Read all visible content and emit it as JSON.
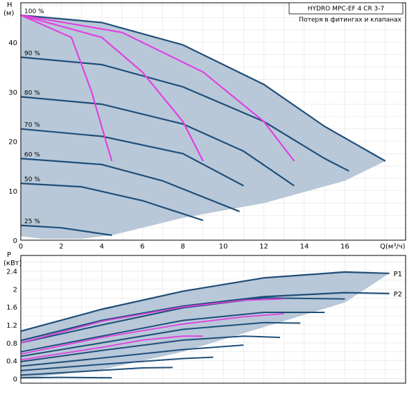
{
  "title": {
    "model": "HYDRO MPC-EF 4 CR 3-7",
    "subtitle": "Потеря в фитингах и клапанах"
  },
  "colors": {
    "envelope_fill": "#b8c8d8",
    "curve": "#1f4e79",
    "loss_curve": "#e040e0",
    "grid": "#e2e2e2",
    "frame": "#000000"
  },
  "chart_data": [
    {
      "type": "line",
      "ylabel": "H",
      "yunit": "(м)",
      "xlabel": "Q(м³/ч)",
      "xlim": [
        0,
        19
      ],
      "ylim": [
        0,
        48
      ],
      "x_ticks": [
        "0",
        "2",
        "4",
        "6",
        "8",
        "10",
        "12",
        "14",
        "16"
      ],
      "y_ticks": [
        "0",
        "10",
        "20",
        "30",
        "40"
      ],
      "grid": true,
      "curves": [
        {
          "label": "100 %",
          "points": [
            [
              0,
              45.5
            ],
            [
              4,
              44
            ],
            [
              8,
              39.5
            ],
            [
              12,
              31.5
            ],
            [
              15,
              23
            ],
            [
              18,
              16
            ]
          ]
        },
        {
          "label": "90 %",
          "points": [
            [
              0,
              37
            ],
            [
              4,
              35.5
            ],
            [
              8,
              31
            ],
            [
              12,
              24
            ],
            [
              15,
              16.5
            ],
            [
              16.2,
              14
            ]
          ]
        },
        {
          "label": "80 %",
          "points": [
            [
              0,
              29
            ],
            [
              4,
              27.5
            ],
            [
              8,
              23.5
            ],
            [
              11,
              18
            ],
            [
              13.5,
              11
            ]
          ]
        },
        {
          "label": "70 %",
          "points": [
            [
              0,
              22.5
            ],
            [
              4,
              21
            ],
            [
              8,
              17.5
            ],
            [
              11,
              11
            ]
          ]
        },
        {
          "label": "60 %",
          "points": [
            [
              0,
              16.5
            ],
            [
              4,
              15.3
            ],
            [
              7,
              12
            ],
            [
              10.8,
              5.8
            ]
          ]
        },
        {
          "label": "50 %",
          "points": [
            [
              0,
              11.5
            ],
            [
              3,
              10.8
            ],
            [
              6,
              8
            ],
            [
              9,
              4
            ]
          ]
        },
        {
          "label": "25 %",
          "points": [
            [
              0,
              3
            ],
            [
              2,
              2.5
            ],
            [
              4.5,
              1
            ]
          ]
        }
      ],
      "envelope": [
        [
          0,
          45.5
        ],
        [
          4,
          44
        ],
        [
          8,
          39.5
        ],
        [
          12,
          31.5
        ],
        [
          15,
          23
        ],
        [
          18,
          16
        ],
        [
          16,
          12
        ],
        [
          12,
          7.5
        ],
        [
          8,
          4.5
        ],
        [
          4.5,
          1
        ],
        [
          3,
          0.3
        ],
        [
          1,
          0.3
        ],
        [
          0,
          0.8
        ]
      ],
      "loss_curves": [
        [
          [
            0,
            45.5
          ],
          [
            2.5,
            41
          ],
          [
            3.5,
            30
          ],
          [
            4.2,
            20
          ],
          [
            4.5,
            16
          ]
        ],
        [
          [
            0,
            45.5
          ],
          [
            4,
            41
          ],
          [
            6,
            34
          ],
          [
            8,
            24
          ],
          [
            9,
            16
          ]
        ],
        [
          [
            0,
            45.5
          ],
          [
            5,
            42
          ],
          [
            9,
            34
          ],
          [
            12,
            24
          ],
          [
            13.5,
            16
          ]
        ]
      ]
    },
    {
      "type": "line",
      "ylabel": "P",
      "yunit": "(кВт)",
      "xlim": [
        0,
        19
      ],
      "ylim": [
        -0.1,
        2.75
      ],
      "y_ticks": [
        "0",
        "0.4",
        "0.8",
        "1.2",
        "1.6",
        "2",
        "2.4"
      ],
      "grid": true,
      "series": [
        {
          "name": "P1",
          "points": [
            [
              0,
              1.06
            ],
            [
              4,
              1.55
            ],
            [
              8,
              1.95
            ],
            [
              12,
              2.25
            ],
            [
              16,
              2.38
            ],
            [
              18.2,
              2.35
            ]
          ]
        },
        {
          "name": "P2",
          "points": [
            [
              0,
              0.85
            ],
            [
              4,
              1.3
            ],
            [
              8,
              1.62
            ],
            [
              12,
              1.83
            ],
            [
              16,
              1.92
            ],
            [
              18.2,
              1.9
            ]
          ]
        }
      ],
      "envelope": [
        [
          0,
          1.06
        ],
        [
          4,
          1.55
        ],
        [
          8,
          1.95
        ],
        [
          12,
          2.25
        ],
        [
          16,
          2.38
        ],
        [
          18.2,
          2.35
        ],
        [
          16,
          1.7
        ],
        [
          12,
          1.15
        ],
        [
          8,
          0.6
        ],
        [
          4,
          0.2
        ],
        [
          0,
          0.0
        ]
      ],
      "partial_curves": [
        [
          [
            0,
            0.8
          ],
          [
            4,
            1.2
          ],
          [
            8,
            1.58
          ],
          [
            12,
            1.8
          ],
          [
            16,
            1.78
          ]
        ],
        [
          [
            0,
            0.6
          ],
          [
            4,
            0.95
          ],
          [
            8,
            1.3
          ],
          [
            12,
            1.48
          ],
          [
            15,
            1.48
          ]
        ],
        [
          [
            0,
            0.5
          ],
          [
            4,
            0.8
          ],
          [
            8,
            1.1
          ],
          [
            12,
            1.25
          ],
          [
            13.8,
            1.24
          ]
        ],
        [
          [
            0,
            0.38
          ],
          [
            4,
            0.63
          ],
          [
            8,
            0.86
          ],
          [
            11,
            0.95
          ],
          [
            12.8,
            0.92
          ]
        ],
        [
          [
            0,
            0.28
          ],
          [
            4,
            0.46
          ],
          [
            8,
            0.65
          ],
          [
            11,
            0.75
          ]
        ],
        [
          [
            0,
            0.18
          ],
          [
            4,
            0.32
          ],
          [
            8,
            0.45
          ],
          [
            9.5,
            0.48
          ]
        ],
        [
          [
            0,
            0.08
          ],
          [
            3,
            0.16
          ],
          [
            6,
            0.24
          ],
          [
            7.5,
            0.25
          ]
        ],
        [
          [
            0,
            0.02
          ],
          [
            2,
            0.03
          ],
          [
            4.5,
            0.02
          ]
        ]
      ],
      "loss_curves": [
        [
          [
            0,
            0.8
          ],
          [
            4,
            1.28
          ],
          [
            8,
            1.6
          ],
          [
            11,
            1.75
          ],
          [
            13,
            1.78
          ]
        ],
        [
          [
            0,
            0.55
          ],
          [
            4,
            0.92
          ],
          [
            8,
            1.22
          ],
          [
            11,
            1.38
          ],
          [
            13,
            1.45
          ]
        ],
        [
          [
            0,
            0.42
          ],
          [
            4,
            0.7
          ],
          [
            6,
            0.86
          ],
          [
            8,
            0.95
          ],
          [
            9,
            0.95
          ]
        ]
      ]
    }
  ]
}
